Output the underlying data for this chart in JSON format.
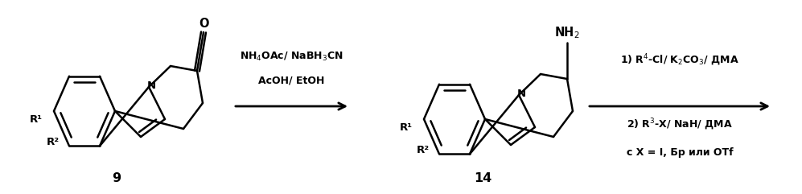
{
  "bg_color": "#ffffff",
  "fig_width": 9.97,
  "fig_height": 2.41,
  "dpi": 100,
  "mol9_label": "9",
  "mol14_label": "14",
  "reagent1_line1": "NH$_4$OAc/ NaBH$_3$CN",
  "reagent1_line2": "AcOH/ EtOH",
  "reagent2_line1": "1) R$^4$-Cl/ K$_2$CO$_3$/ ДМА",
  "reagent2_line2": "2) R$^3$-X/ NaH/ ДМА",
  "reagent2_line3": "с X = I, Бр или OTf"
}
